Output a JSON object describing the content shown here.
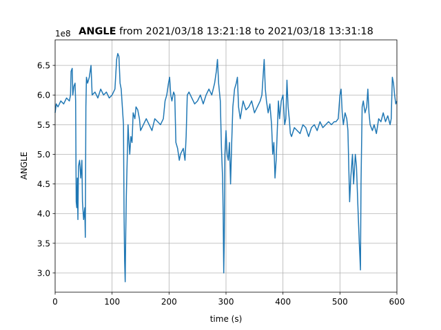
{
  "chart_data": {
    "type": "line",
    "title_bold": "ANGLE",
    "title": "from 2021/03/18 13:21:18 to 2021/03/18 13:31:18",
    "offset_text": "1e8",
    "xlabel": "time (s)",
    "ylabel": "ANGLE",
    "xlim": [
      0,
      600
    ],
    "ylim": [
      2.675,
      6.93
    ],
    "xticks": [
      0,
      100,
      200,
      300,
      400,
      500,
      600
    ],
    "yticks": [
      {
        "value": 3,
        "label": "3.0"
      },
      3.5,
      {
        "value": 4,
        "label": "4.0"
      },
      4.5,
      {
        "value": 5,
        "label": "5.0"
      },
      5.5,
      {
        "value": 6,
        "label": "6.0"
      },
      6.5
    ],
    "grid": true,
    "series": [
      {
        "name": "ANGLE",
        "color": "#1f77b4",
        "x": [
          0,
          2,
          5,
          10,
          15,
          20,
          25,
          27,
          28,
          30,
          31,
          33,
          35,
          36,
          37,
          38,
          39,
          40,
          41,
          43,
          45,
          47,
          48,
          50,
          52,
          53,
          54,
          55,
          57,
          60,
          63,
          65,
          70,
          75,
          80,
          85,
          90,
          95,
          100,
          105,
          108,
          110,
          112,
          114,
          116,
          118,
          120,
          121,
          122,
          123,
          124,
          125,
          127,
          128,
          129,
          131,
          133,
          135,
          137,
          140,
          142,
          145,
          148,
          150,
          155,
          160,
          165,
          170,
          175,
          180,
          185,
          190,
          193,
          196,
          199,
          201,
          203,
          205,
          208,
          210,
          212,
          215,
          218,
          220,
          225,
          228,
          230,
          232,
          235,
          240,
          245,
          250,
          255,
          260,
          265,
          270,
          275,
          280,
          283,
          285,
          287,
          290,
          292,
          294,
          295,
          296,
          297,
          298,
          300,
          302,
          304,
          306,
          308,
          310,
          312,
          315,
          318,
          320,
          322,
          325,
          330,
          335,
          340,
          345,
          350,
          355,
          360,
          363,
          365,
          367,
          369,
          371,
          374,
          377,
          380,
          382,
          384,
          386,
          388,
          390,
          392,
          394,
          397,
          400,
          403,
          405,
          407,
          409,
          411,
          413,
          415,
          420,
          425,
          430,
          435,
          440,
          445,
          450,
          455,
          460,
          465,
          470,
          475,
          480,
          485,
          490,
          493,
          497,
          500,
          502,
          504,
          506,
          509,
          512,
          514,
          517,
          519,
          522,
          524,
          527,
          529,
          532,
          534,
          536,
          537,
          539,
          541,
          544,
          547,
          549,
          551,
          553,
          557,
          560,
          564,
          568,
          572,
          576,
          580,
          584,
          588,
          590,
          592,
          594,
          596,
          598,
          600
        ],
        "values": [
          5.7,
          5.85,
          5.8,
          5.9,
          5.85,
          5.95,
          5.9,
          6.0,
          6.4,
          6.45,
          6.0,
          6.15,
          6.2,
          5.9,
          4.2,
          4.1,
          4.6,
          3.9,
          4.8,
          4.9,
          4.6,
          4.9,
          4.2,
          3.9,
          4.1,
          3.6,
          5.8,
          6.3,
          6.2,
          6.3,
          6.5,
          6.0,
          6.05,
          5.95,
          6.1,
          6.0,
          6.05,
          5.95,
          6.0,
          6.1,
          6.6,
          6.7,
          6.65,
          6.2,
          6.1,
          5.8,
          5.5,
          4.0,
          3.2,
          2.85,
          3.7,
          4.3,
          5.1,
          5.5,
          5.3,
          5.0,
          5.3,
          5.2,
          5.7,
          5.6,
          5.8,
          5.75,
          5.6,
          5.4,
          5.5,
          5.6,
          5.5,
          5.4,
          5.6,
          5.55,
          5.5,
          5.6,
          5.9,
          6.0,
          6.2,
          6.3,
          6.0,
          5.9,
          6.05,
          6.0,
          5.2,
          5.1,
          4.9,
          5.0,
          5.1,
          4.9,
          5.3,
          6.0,
          6.05,
          5.95,
          5.85,
          5.9,
          6.0,
          5.85,
          6.0,
          6.1,
          6.0,
          6.2,
          6.4,
          6.6,
          6.2,
          5.9,
          5.1,
          4.6,
          4.0,
          3.0,
          3.6,
          5.0,
          5.4,
          5.0,
          4.9,
          5.2,
          4.5,
          5.2,
          5.8,
          6.1,
          6.2,
          6.3,
          5.8,
          5.6,
          5.9,
          5.75,
          5.8,
          5.9,
          5.7,
          5.8,
          5.9,
          6.0,
          6.3,
          6.6,
          6.1,
          5.9,
          5.7,
          5.85,
          5.5,
          5.0,
          5.2,
          4.6,
          4.9,
          5.4,
          5.9,
          5.6,
          5.9,
          6.0,
          5.5,
          5.6,
          6.25,
          5.8,
          5.6,
          5.35,
          5.3,
          5.45,
          5.4,
          5.35,
          5.5,
          5.45,
          5.3,
          5.45,
          5.5,
          5.4,
          5.55,
          5.45,
          5.5,
          5.55,
          5.5,
          5.55,
          5.55,
          5.6,
          6.0,
          6.1,
          5.7,
          5.5,
          5.7,
          5.6,
          5.4,
          4.2,
          4.6,
          5.0,
          4.5,
          5.0,
          4.8,
          4.0,
          3.5,
          3.05,
          4.5,
          5.8,
          5.9,
          5.7,
          5.8,
          6.1,
          5.7,
          5.5,
          5.4,
          5.5,
          5.35,
          5.6,
          5.55,
          5.7,
          5.55,
          5.65,
          5.5,
          5.6,
          6.3,
          6.2,
          6.0,
          5.85,
          5.9
        ]
      }
    ]
  }
}
